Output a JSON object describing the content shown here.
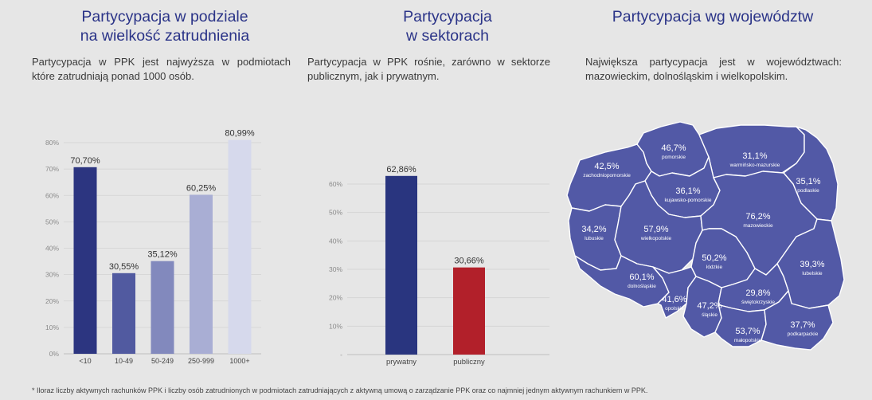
{
  "colors": {
    "title": "#2b3488",
    "map_fill": "#5259a6",
    "map_stroke": "#ffffff",
    "sector_private": "#29357f",
    "sector_public": "#b2202a"
  },
  "panel1": {
    "title_line1": "Partycypacja w podziale",
    "title_line2": "na wielkość zatrudnienia",
    "text_line1": "Partycypacja w PPK jest najwyższa w podmiotach",
    "text_line2": "które zatrudniają ponad 1000 osób."
  },
  "panel2": {
    "title_line1": "Partycypacja",
    "title_line2": "w sektorach",
    "text_line1": "Partycypacja w PPK rośnie, zarówno w sektorze",
    "text_line2": "publicznym, jak i prywatnym."
  },
  "panel3": {
    "title": "Partycypacja wg województw",
    "text_line1": "Największa partycypacja jest w województwach:",
    "text_line2": "mazowieckim, dolnośląskim i wielkopolskim."
  },
  "chart_data": [
    {
      "type": "bar",
      "categories": [
        "<10",
        "10-49",
        "50-249",
        "250-999",
        "1000+"
      ],
      "values": [
        70.7,
        30.55,
        35.12,
        60.25,
        80.99
      ],
      "value_labels": [
        "70,70%",
        "30,55%",
        "35,12%",
        "60,25%",
        "80,99%"
      ],
      "colors": [
        "#2c3580",
        "#515aa0",
        "#8289bd",
        "#a9aed4",
        "#d6d9ec"
      ],
      "ylim": [
        0,
        80
      ],
      "yticks": [
        0,
        10,
        20,
        30,
        40,
        50,
        60,
        70,
        80
      ],
      "ytick_labels": [
        "0%",
        "10%",
        "20%",
        "30%",
        "40%",
        "50%",
        "60%",
        "70%",
        "80%"
      ],
      "grid": true
    },
    {
      "type": "bar",
      "categories": [
        "prywatny",
        "publiczny"
      ],
      "values": [
        62.86,
        30.66
      ],
      "value_labels": [
        "62,86%",
        "30,66%"
      ],
      "colors": [
        "#29357f",
        "#b2202a"
      ],
      "ylim": [
        0,
        60
      ],
      "yticks": [
        0,
        10,
        20,
        30,
        40,
        50,
        60
      ],
      "ytick_labels": [
        "-",
        "10%",
        "20%",
        "30%",
        "40%",
        "50%",
        "60%"
      ],
      "grid": true
    },
    {
      "type": "map",
      "regions": [
        {
          "name": "zachodniopomorskie",
          "value": "42,5%"
        },
        {
          "name": "pomorskie",
          "value": "46,7%"
        },
        {
          "name": "warmińsko-mazurskie",
          "value": "31,1%"
        },
        {
          "name": "podlaskie",
          "value": "35,1%"
        },
        {
          "name": "kujawsko-pomorskie",
          "value": "36,1%"
        },
        {
          "name": "lubuskie",
          "value": "34,2%"
        },
        {
          "name": "wielkopolskie",
          "value": "57,9%"
        },
        {
          "name": "mazowieckie",
          "value": "76,2%"
        },
        {
          "name": "łódzkie",
          "value": "50,2%"
        },
        {
          "name": "lubelskie",
          "value": "39,3%"
        },
        {
          "name": "dolnośląskie",
          "value": "60,1%"
        },
        {
          "name": "opolskie",
          "value": "41,6%"
        },
        {
          "name": "śląskie",
          "value": "47,2%"
        },
        {
          "name": "świętokrzyskie",
          "value": "29,8%"
        },
        {
          "name": "małopolskie",
          "value": "53,7%"
        },
        {
          "name": "podkarpackie",
          "value": "37,7%"
        }
      ]
    }
  ],
  "footnote": "* Iloraz liczby aktywnych rachunków PPK i liczby osób zatrudnionych w podmiotach zatrudniających z aktywną umową o zarządzanie PPK oraz co najmniej jednym aktywnym rachunkiem w PPK."
}
